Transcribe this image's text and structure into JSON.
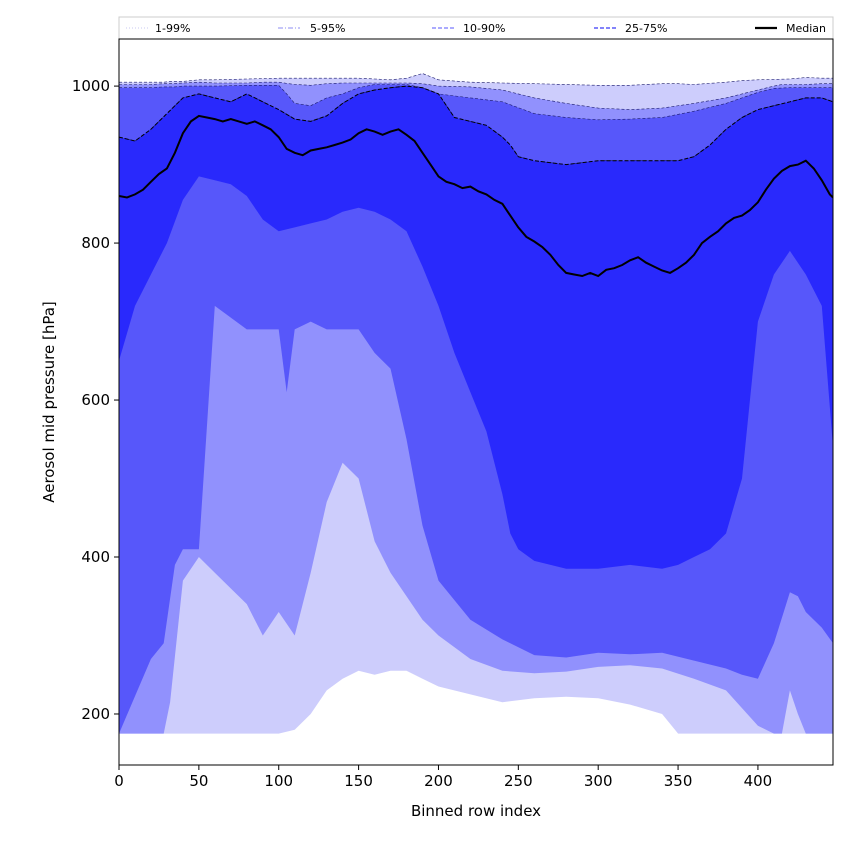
{
  "chart_data": {
    "type": "area",
    "xlabel": "Binned row index",
    "ylabel": "Aerosol mid pressure [hPa]",
    "xlim": [
      0,
      447
    ],
    "ylim": [
      135,
      1060
    ],
    "x_ticks": [
      0,
      50,
      100,
      150,
      200,
      250,
      300,
      350,
      400
    ],
    "y_ticks": [
      200,
      400,
      600,
      800,
      1000
    ],
    "grid": false,
    "legend_position": "top, above plot",
    "legend": [
      {
        "label": "1-99%",
        "style": "dotted",
        "color": "#dcdcf6"
      },
      {
        "label": "5-95%",
        "style": "dashdot",
        "color": "#b3b3f7"
      },
      {
        "label": "10-90%",
        "style": "dashed",
        "color": "#8f8ffd"
      },
      {
        "label": "25-75%",
        "style": "dashed",
        "color": "#5a5af8"
      },
      {
        "label": "Median",
        "style": "solid",
        "color": "#000000"
      }
    ],
    "bands": [
      {
        "name": "1-99%",
        "color": "#cdcdfc",
        "x": [
          0,
          28,
          32,
          40,
          50,
          60,
          80,
          100,
          110,
          120,
          130,
          140,
          150,
          160,
          170,
          180,
          190,
          200,
          220,
          240,
          260,
          280,
          300,
          320,
          340,
          350,
          360,
          380,
          390,
          400,
          420,
          430,
          440,
          447
        ],
        "lower": [
          175,
          175,
          175,
          175,
          175,
          175,
          175,
          175,
          180,
          200,
          230,
          245,
          255,
          250,
          255,
          255,
          245,
          235,
          225,
          215,
          220,
          222,
          220,
          212,
          200,
          175,
          175,
          175,
          175,
          175,
          175,
          175,
          175,
          175
        ],
        "upper": [
          1005,
          1005,
          1006,
          1006,
          1008,
          1008,
          1009,
          1010,
          1010,
          1010,
          1010,
          1010,
          1010,
          1009,
          1008,
          1010,
          1016,
          1008,
          1005,
          1004,
          1003,
          1002,
          1001,
          1001,
          1003,
          1003,
          1002,
          1005,
          1007,
          1008,
          1009,
          1011,
          1010,
          1010
        ]
      },
      {
        "name": "5-95%",
        "color": "#9191fd",
        "x": [
          0,
          20,
          28,
          32,
          40,
          50,
          60,
          80,
          90,
          100,
          110,
          120,
          130,
          140,
          150,
          160,
          170,
          180,
          190,
          200,
          220,
          240,
          260,
          280,
          300,
          320,
          340,
          360,
          380,
          400,
          410,
          415,
          420,
          425,
          430,
          440,
          447
        ],
        "lower": [
          175,
          175,
          175,
          215,
          370,
          400,
          380,
          340,
          300,
          330,
          300,
          380,
          470,
          520,
          500,
          420,
          380,
          350,
          320,
          300,
          270,
          255,
          252,
          254,
          260,
          262,
          258,
          245,
          230,
          185,
          175,
          175,
          230,
          200,
          175,
          175,
          175
        ],
        "upper": [
          1002,
          1002,
          1003,
          1003,
          1004,
          1005,
          1004,
          1004,
          1005,
          1005,
          1002,
          1001,
          1003,
          1004,
          1004,
          1004,
          1004,
          1004,
          1003,
          1000,
          999,
          995,
          985,
          978,
          972,
          970,
          972,
          978,
          985,
          995,
          1000,
          1002,
          1002,
          1002,
          1002,
          1003,
          1003
        ]
      },
      {
        "name": "10-90%",
        "color": "#5757fa",
        "x": [
          0,
          20,
          28,
          35,
          40,
          50,
          60,
          80,
          100,
          105,
          110,
          120,
          130,
          140,
          150,
          160,
          170,
          180,
          190,
          200,
          220,
          240,
          260,
          280,
          300,
          320,
          340,
          360,
          380,
          390,
          400,
          410,
          420,
          425,
          430,
          440,
          447
        ],
        "lower": [
          175,
          270,
          290,
          390,
          410,
          410,
          720,
          690,
          690,
          610,
          690,
          700,
          690,
          690,
          690,
          660,
          640,
          550,
          440,
          370,
          320,
          295,
          275,
          272,
          278,
          276,
          278,
          268,
          258,
          250,
          245,
          290,
          355,
          350,
          330,
          310,
          290
        ],
        "upper": [
          998,
          998,
          999,
          999,
          1000,
          1000,
          1000,
          1001,
          1001,
          990,
          978,
          975,
          985,
          990,
          998,
          1002,
          1002,
          1002,
          998,
          990,
          985,
          980,
          965,
          960,
          957,
          958,
          960,
          968,
          978,
          985,
          992,
          997,
          998,
          998,
          998,
          998,
          998
        ]
      },
      {
        "name": "25-75%",
        "color": "#2929fc",
        "x": [
          0,
          10,
          20,
          30,
          40,
          50,
          60,
          70,
          80,
          90,
          100,
          110,
          120,
          130,
          140,
          150,
          160,
          170,
          180,
          190,
          200,
          210,
          220,
          230,
          240,
          245,
          250,
          260,
          280,
          300,
          320,
          340,
          350,
          360,
          370,
          380,
          390,
          400,
          410,
          420,
          430,
          440,
          447
        ],
        "lower": [
          650,
          720,
          760,
          800,
          855,
          885,
          880,
          875,
          860,
          830,
          815,
          820,
          825,
          830,
          840,
          845,
          840,
          830,
          815,
          770,
          720,
          660,
          610,
          560,
          480,
          430,
          410,
          395,
          385,
          385,
          390,
          385,
          390,
          400,
          410,
          430,
          500,
          700,
          760,
          790,
          760,
          720,
          540
        ],
        "upper": [
          935,
          930,
          945,
          965,
          985,
          990,
          985,
          980,
          990,
          980,
          970,
          958,
          955,
          962,
          978,
          990,
          995,
          998,
          1000,
          998,
          990,
          960,
          955,
          950,
          935,
          925,
          910,
          905,
          900,
          905,
          905,
          905,
          905,
          910,
          925,
          945,
          960,
          970,
          975,
          980,
          985,
          985,
          980
        ]
      }
    ],
    "series": [
      {
        "name": "Median",
        "color": "#000000",
        "x": [
          0,
          5,
          10,
          15,
          20,
          25,
          30,
          35,
          40,
          45,
          50,
          55,
          60,
          65,
          70,
          75,
          80,
          85,
          90,
          95,
          100,
          105,
          110,
          115,
          120,
          125,
          130,
          135,
          140,
          145,
          150,
          155,
          160,
          165,
          170,
          175,
          180,
          185,
          190,
          195,
          200,
          205,
          210,
          215,
          220,
          225,
          230,
          235,
          240,
          245,
          250,
          255,
          260,
          265,
          270,
          275,
          280,
          285,
          290,
          295,
          300,
          305,
          310,
          315,
          320,
          325,
          330,
          335,
          340,
          345,
          350,
          355,
          360,
          365,
          370,
          375,
          380,
          385,
          390,
          395,
          400,
          405,
          410,
          415,
          420,
          425,
          430,
          435,
          440,
          445,
          447
        ],
        "y": [
          860,
          858,
          862,
          868,
          878,
          888,
          895,
          915,
          940,
          955,
          962,
          960,
          958,
          955,
          958,
          955,
          952,
          955,
          950,
          945,
          935,
          920,
          915,
          912,
          918,
          920,
          922,
          925,
          928,
          932,
          940,
          945,
          942,
          938,
          942,
          945,
          938,
          930,
          915,
          900,
          885,
          878,
          875,
          870,
          872,
          866,
          862,
          855,
          850,
          835,
          820,
          808,
          802,
          795,
          785,
          772,
          762,
          760,
          758,
          762,
          758,
          766,
          768,
          772,
          778,
          782,
          775,
          770,
          765,
          762,
          768,
          775,
          785,
          800,
          808,
          815,
          825,
          832,
          835,
          842,
          852,
          868,
          882,
          892,
          898,
          900,
          905,
          895,
          880,
          862,
          858
        ]
      },
      {
        "name": "25-75% bounds",
        "color": "#000000",
        "style": "dashed",
        "x": [
          0,
          10,
          20,
          30,
          40,
          50,
          60,
          70,
          80,
          90,
          100,
          110,
          120,
          130,
          140,
          150,
          160,
          170,
          180,
          190,
          200,
          210,
          220,
          230,
          240,
          245,
          250,
          260,
          280,
          300,
          320,
          340,
          350,
          360,
          370,
          380,
          390,
          400,
          410,
          420,
          430,
          440,
          447
        ],
        "y": [
          935,
          930,
          945,
          965,
          985,
          990,
          985,
          980,
          990,
          980,
          970,
          958,
          955,
          962,
          978,
          990,
          995,
          998,
          1000,
          998,
          990,
          960,
          955,
          950,
          935,
          925,
          910,
          905,
          900,
          905,
          905,
          905,
          905,
          910,
          925,
          945,
          960,
          970,
          975,
          980,
          985,
          985,
          980
        ]
      }
    ]
  }
}
